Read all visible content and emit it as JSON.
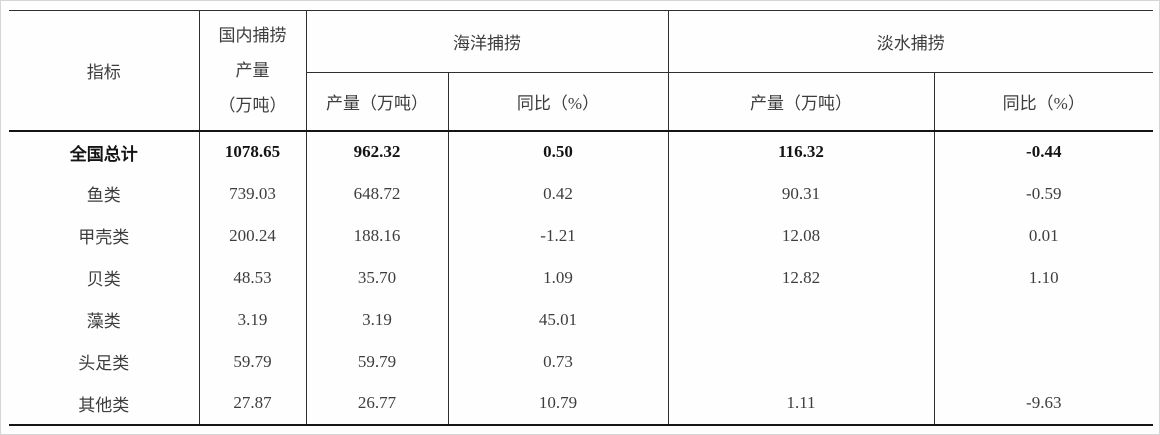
{
  "table": {
    "header": {
      "indicator": "指标",
      "domestic": [
        "国内捕捞",
        "产量",
        "（万吨）"
      ],
      "marine_group": "海洋捕捞",
      "freshwater_group": "淡水捕捞",
      "production_label": "产量（万吨）",
      "yoy_label": "同比（%）"
    },
    "rows": [
      {
        "label": "全国总计",
        "bold": true,
        "values": [
          "1078.65",
          "962.32",
          "0.50",
          "116.32",
          "-0.44"
        ]
      },
      {
        "label": "鱼类",
        "bold": false,
        "values": [
          "739.03",
          "648.72",
          "0.42",
          "90.31",
          "-0.59"
        ]
      },
      {
        "label": "甲壳类",
        "bold": false,
        "values": [
          "200.24",
          "188.16",
          "-1.21",
          "12.08",
          "0.01"
        ]
      },
      {
        "label": "贝类",
        "bold": false,
        "values": [
          "48.53",
          "35.70",
          "1.09",
          "12.82",
          "1.10"
        ]
      },
      {
        "label": "藻类",
        "bold": false,
        "values": [
          "3.19",
          "3.19",
          "45.01",
          "",
          ""
        ]
      },
      {
        "label": "头足类",
        "bold": false,
        "values": [
          "59.79",
          "59.79",
          "0.73",
          "",
          ""
        ]
      },
      {
        "label": "其他类",
        "bold": false,
        "values": [
          "27.87",
          "26.77",
          "10.79",
          "1.11",
          "-9.63"
        ]
      }
    ]
  }
}
